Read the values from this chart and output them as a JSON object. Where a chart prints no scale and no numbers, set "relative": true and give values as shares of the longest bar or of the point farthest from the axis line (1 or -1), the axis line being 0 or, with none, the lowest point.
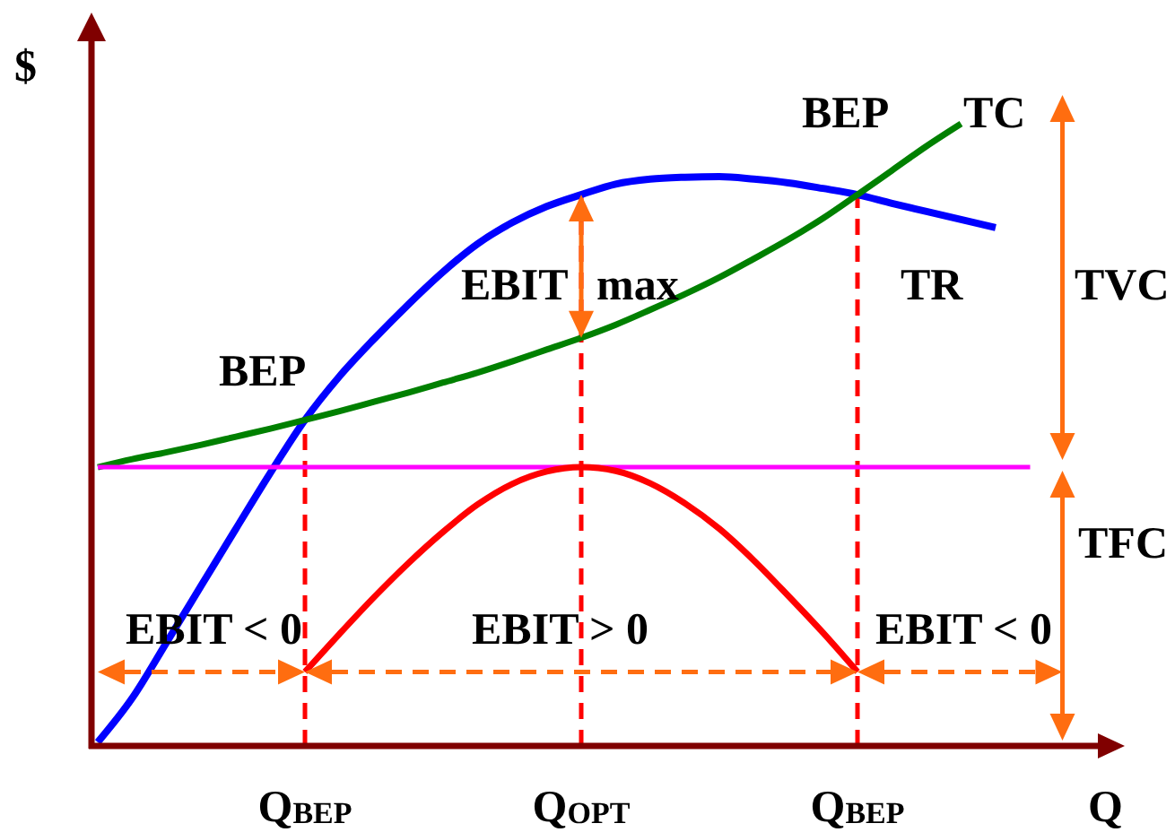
{
  "chart_data": {
    "type": "line",
    "relative": true,
    "xlabel": "Q",
    "ylabel": "$",
    "categories": [
      null,
      null,
      null,
      null,
      null,
      null,
      "Q$_{BEP}$",
      null,
      null,
      null,
      null,
      null,
      null,
      null,
      "Q$_{OPT}$",
      null,
      null,
      null,
      null,
      null,
      null,
      null,
      "Q$_{BEP}$",
      null,
      null,
      null,
      null,
      null
    ],
    "series": [
      {
        "name": "TR",
        "color": "#0000ff",
        "values": [
          0.006,
          0.077,
          0.167,
          0.258,
          0.349,
          0.439,
          0.524,
          0.594,
          0.654,
          0.71,
          0.762,
          0.807,
          0.841,
          0.867,
          0.886,
          0.903,
          0.911,
          0.914,
          0.915,
          0.911,
          0.905,
          0.896,
          0.886,
          0.872,
          0.859,
          0.846,
          0.833,
          null
        ]
      },
      {
        "name": "TC",
        "color": "#008000",
        "values": [
          0.448,
          0.461,
          0.472,
          0.484,
          0.497,
          0.51,
          0.524,
          0.538,
          0.553,
          0.568,
          0.584,
          0.6,
          0.618,
          0.637,
          0.656,
          0.677,
          0.701,
          0.726,
          0.753,
          0.783,
          0.814,
          0.848,
          0.886,
          0.925,
          0.964,
          1,
          null,
          null
        ]
      },
      {
        "color": "#ff00ff",
        "values": [
          0.448,
          0.448,
          0.448,
          0.448,
          0.448,
          0.448,
          0.448,
          0.448,
          0.448,
          0.448,
          0.448,
          0.448,
          0.448,
          0.448,
          0.448,
          0.448,
          0.448,
          0.448,
          0.448,
          0.448,
          0.448,
          0.448,
          0.448,
          0.448,
          0.448,
          0.448,
          0.448,
          0.448
        ]
      },
      {
        "color": "#ff0000",
        "values": [
          null,
          null,
          null,
          null,
          null,
          null,
          0.119,
          0.18,
          0.239,
          0.294,
          0.344,
          0.388,
          0.421,
          0.441,
          0.448,
          0.442,
          0.422,
          0.39,
          0.349,
          0.298,
          0.241,
          0.182,
          0.119,
          null,
          null,
          null,
          null,
          null
        ]
      }
    ],
    "ref_lines": [
      {
        "axis": "x",
        "value": "Q$_{BEP}$",
        "color": "#ff0000",
        "line_style": "dashed"
      },
      {
        "axis": "x",
        "value": "Q$_{OPT}$",
        "color": "#ff0000",
        "line_style": "dashed"
      }
    ],
    "annotations": [
      "BEP",
      "EBIT max",
      "TVC",
      "BEP",
      "TFC",
      "EBIT < 0",
      "EBIT > 0",
      "EBIT < 0"
    ]
  }
}
